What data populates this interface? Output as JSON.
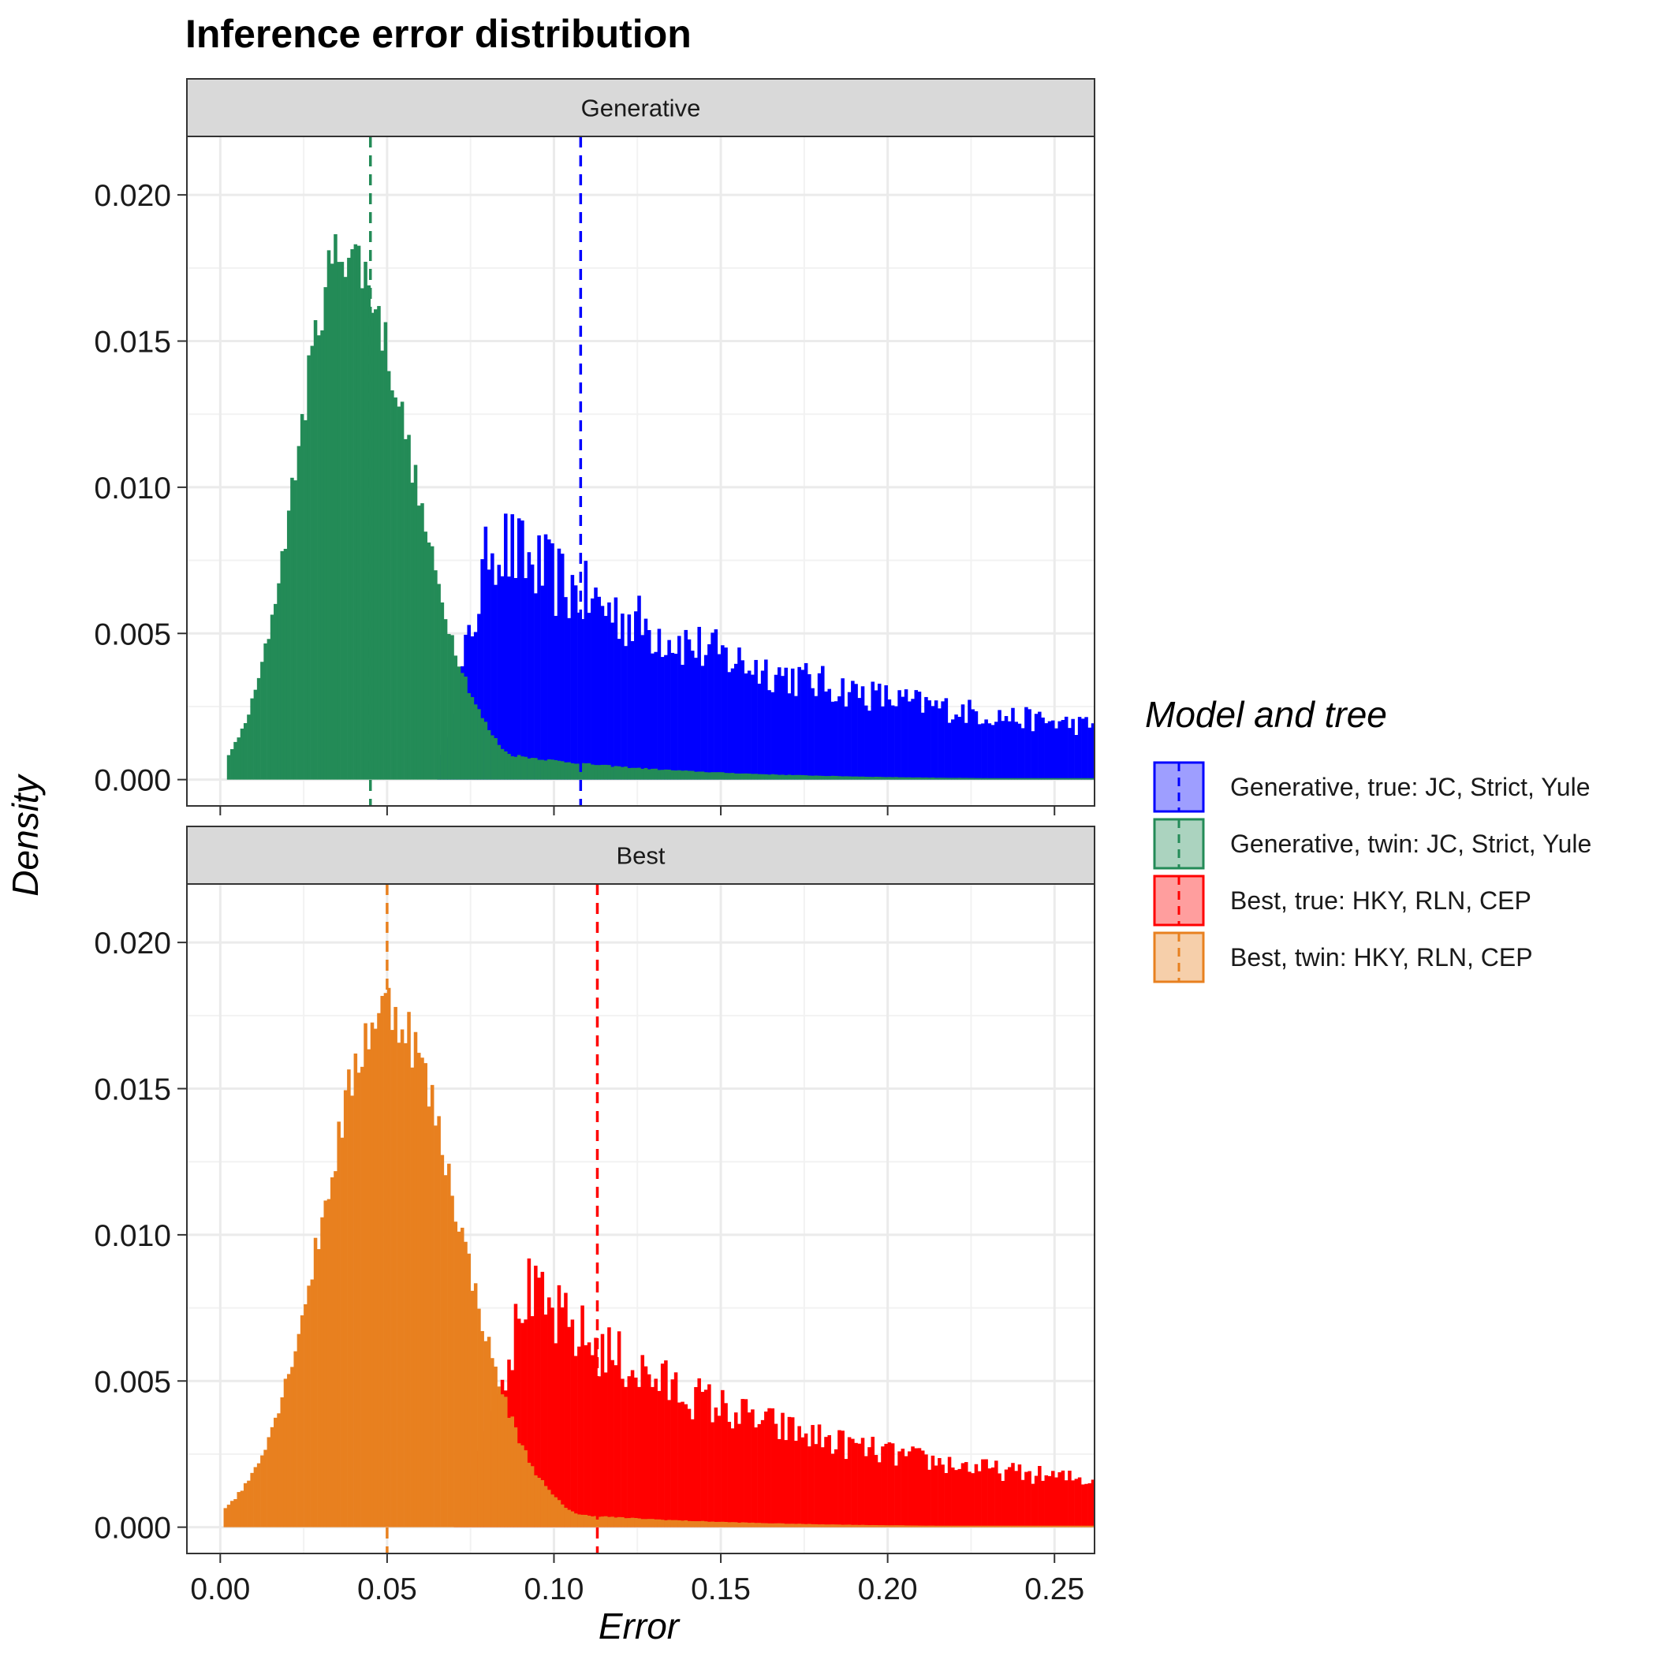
{
  "chart_data": {
    "type": "histogram",
    "title": "Inference error distribution",
    "xlabel": "Error",
    "ylabel": "Density",
    "xlim": [
      -0.01,
      0.262
    ],
    "ylim": [
      -0.0009,
      0.022
    ],
    "x_ticks": [
      "0.00",
      "0.05",
      "0.10",
      "0.15",
      "0.20",
      "0.25"
    ],
    "x_tick_values": [
      0.0,
      0.05,
      0.1,
      0.15,
      0.2,
      0.25
    ],
    "y_ticks": [
      "0.000",
      "0.005",
      "0.010",
      "0.015",
      "0.020"
    ],
    "y_tick_values": [
      0.0,
      0.005,
      0.01,
      0.015,
      0.02
    ],
    "grid": true,
    "bin_width": 0.001,
    "legend": {
      "title": "Model and tree",
      "position": "right",
      "items": [
        {
          "label": "Generative, true: JC, Strict, Yule",
          "color": "#0000ff"
        },
        {
          "label": "Generative, twin: JC, Strict, Yule",
          "color": "#238b57"
        },
        {
          "label": "Best, true: HKY, RLN, CEP",
          "color": "#ff0000"
        },
        {
          "label": "Best, twin: HKY, RLN, CEP",
          "color": "#e8801f"
        }
      ]
    },
    "panels": [
      {
        "strip": "Generative",
        "series": [
          {
            "name": "Generative, true: JC, Strict, Yule",
            "color": "#0000ff",
            "role": "true",
            "mean": 0.108,
            "shape": {
              "peak_x": 0.08,
              "peak_y": 0.0075,
              "rise_start": 0.065,
              "decay_rate": 11.5,
              "noise": 0.2
            }
          },
          {
            "name": "Generative, twin: JC, Strict, Yule",
            "color": "#238b57",
            "role": "twin",
            "mean": 0.045,
            "shape": {
              "mode": 0.037,
              "peak_y": 0.0182,
              "sd_left": 0.014,
              "sd_right": 0.02,
              "start": 0.002,
              "tail": 0.0008,
              "noise": 0.06
            }
          }
        ]
      },
      {
        "strip": "Best",
        "series": [
          {
            "name": "Best, true: HKY, RLN, CEP",
            "color": "#ff0000",
            "role": "true",
            "mean": 0.113,
            "shape": {
              "peak_x": 0.09,
              "peak_y": 0.0072,
              "rise_start": 0.07,
              "decay_rate": 13.5,
              "noise": 0.18
            }
          },
          {
            "name": "Best, twin: HKY, RLN, CEP",
            "color": "#e8801f",
            "role": "twin",
            "mean": 0.05,
            "shape": {
              "mode": 0.05,
              "peak_y": 0.0178,
              "sd_left": 0.019,
              "sd_right": 0.021,
              "start": 0.001,
              "tail": 0.0006,
              "noise": 0.06
            }
          }
        ]
      }
    ]
  }
}
